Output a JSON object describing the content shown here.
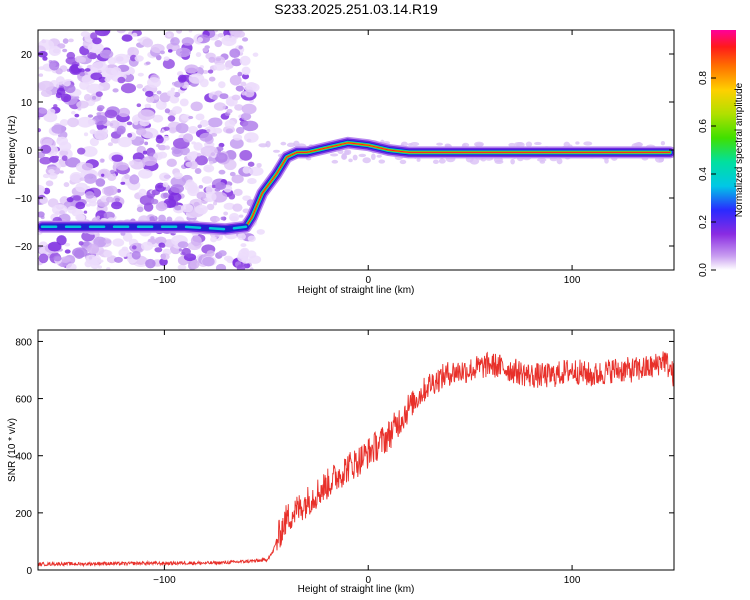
{
  "title": "S233.2025.251.03.14.R19",
  "chart_data": [
    {
      "type": "heatmap",
      "name": "spectrogram",
      "xlabel": "Height of straight line (km)",
      "ylabel": "Frequency (Hz)",
      "xlim": [
        -162,
        150
      ],
      "ylim": [
        -25,
        25
      ],
      "xticks": [
        -100,
        0,
        100
      ],
      "yticks": [
        -20,
        -10,
        0,
        10,
        20
      ],
      "noise_region_x": [
        -162,
        -57
      ],
      "dominant_frequency_track": {
        "x": [
          -160,
          -120,
          -90,
          -70,
          -60,
          -57,
          -52,
          -45,
          -40,
          -35,
          -30,
          -20,
          -10,
          0,
          10,
          20,
          30,
          50,
          70,
          90,
          110,
          148
        ],
        "y": [
          -16,
          -16,
          -16,
          -16.5,
          -16,
          -14,
          -9,
          -5,
          -1.5,
          -0.5,
          -0.5,
          0.5,
          1.5,
          1,
          0,
          -0.5,
          -0.5,
          -0.5,
          -0.5,
          -0.5,
          -0.5,
          -0.5
        ]
      },
      "colorbar": {
        "label": "Normalized spectral amplitude",
        "range": [
          0,
          1
        ],
        "ticks": [
          0.0,
          0.2,
          0.4,
          0.6,
          0.8
        ],
        "tick_labels": [
          "0.0",
          "0.2",
          "0.4",
          "0.6",
          "0.8"
        ]
      }
    },
    {
      "type": "line",
      "name": "snr",
      "xlabel": "Height of straight line (km)",
      "ylabel": "SNR (10 * v/v)",
      "xlim": [
        -162,
        150
      ],
      "ylim": [
        0,
        840
      ],
      "xticks": [
        -100,
        0,
        100
      ],
      "yticks": [
        0,
        200,
        400,
        600,
        800
      ],
      "color": "#e8302a",
      "series": [
        {
          "name": "SNR",
          "x": [
            -162,
            -150,
            -140,
            -130,
            -120,
            -110,
            -100,
            -90,
            -80,
            -70,
            -60,
            -55,
            -50,
            -47,
            -45,
            -42,
            -40,
            -35,
            -30,
            -25,
            -20,
            -15,
            -10,
            -5,
            0,
            5,
            10,
            15,
            20,
            25,
            30,
            40,
            50,
            60,
            70,
            80,
            90,
            100,
            110,
            120,
            130,
            140,
            145,
            150
          ],
          "y": [
            20,
            22,
            21,
            23,
            22,
            24,
            23,
            25,
            24,
            26,
            30,
            32,
            35,
            60,
            100,
            150,
            180,
            210,
            240,
            270,
            300,
            330,
            360,
            380,
            410,
            440,
            470,
            520,
            570,
            610,
            650,
            690,
            700,
            720,
            700,
            680,
            680,
            700,
            680,
            700,
            700,
            710,
            740,
            680
          ]
        }
      ]
    }
  ]
}
